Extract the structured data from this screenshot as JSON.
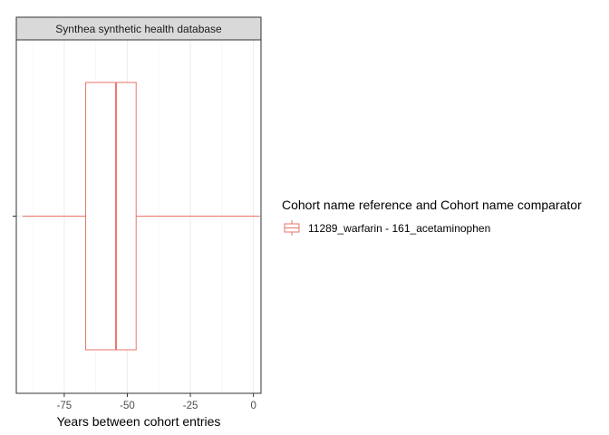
{
  "chart_data": {
    "type": "boxplot",
    "facet_title": "Synthea synthetic health database",
    "xlabel": "Years between cohort entries",
    "ylabel": "",
    "xlim": [
      -94,
      3
    ],
    "xticks": [
      -75,
      -50,
      -25,
      0
    ],
    "minor_gridlines": [
      -87.5,
      -62.5,
      -37.5,
      -12.5
    ],
    "grid": true,
    "legend": {
      "title": "Cohort name reference and Cohort name comparator",
      "position": "right"
    },
    "series": [
      {
        "name": "11289_warfarin - 161_acetaminophen",
        "color": "#E8756B",
        "whisker_low": -91.5,
        "q1": -66.5,
        "median": -54.5,
        "q3": -46.5,
        "whisker_high": 2.5
      }
    ]
  }
}
